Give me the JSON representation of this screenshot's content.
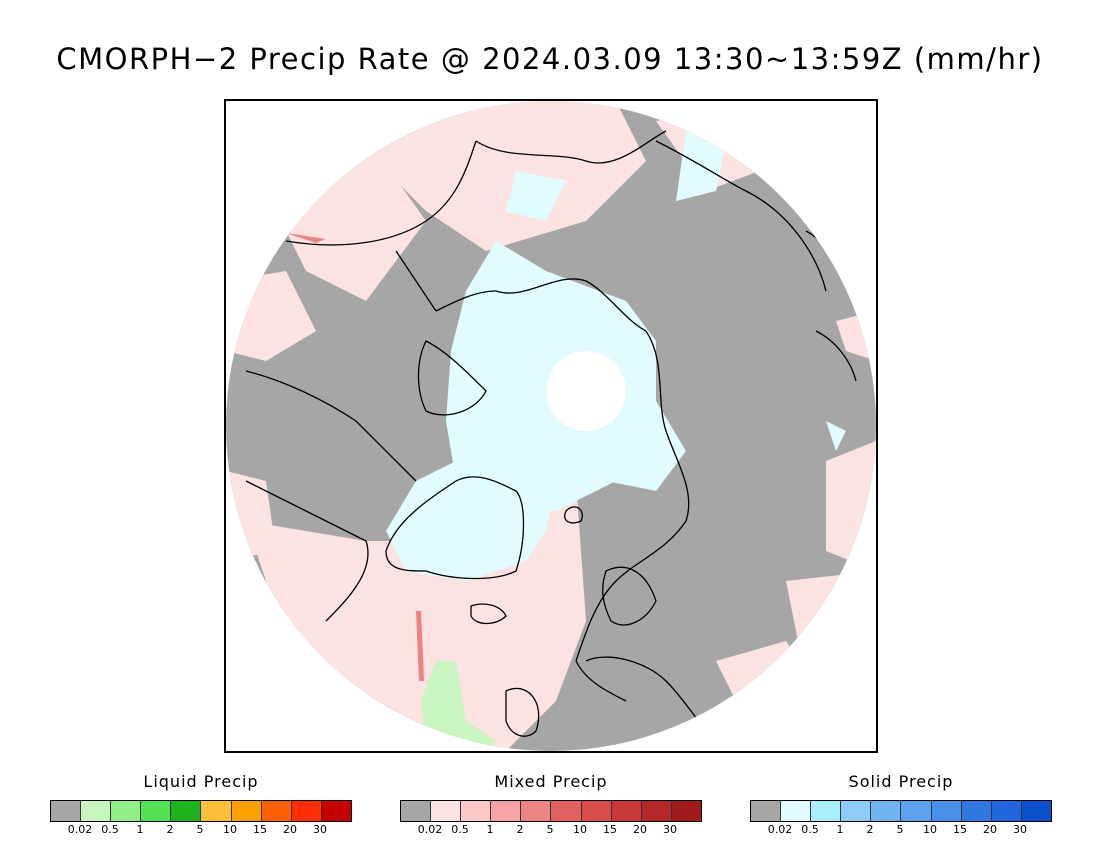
{
  "title": "CMORPH−2 Precip Rate @ 2024.03.09 13:30~13:59Z (mm/hr)",
  "colors": {
    "land_nodata": "#a6a6a6",
    "coastline": "#000000",
    "frame": "#000000"
  },
  "map": {
    "projection": "north-polar-stereographic",
    "features": [
      "coastline",
      "gray-no-precip",
      "mixed-precip-pink",
      "solid-precip-blue",
      "liquid-precip-green"
    ]
  },
  "legends": [
    {
      "title": "Liquid Precip",
      "colors": [
        "#a6a6a6",
        "#c8f5c0",
        "#92ee88",
        "#53e253",
        "#1eb31e",
        "#fbbf3c",
        "#fe9f02",
        "#fe6002",
        "#fe2d02",
        "#c40000"
      ],
      "ticks": [
        "0.02",
        "0.5",
        "1",
        "2",
        "5",
        "10",
        "15",
        "20",
        "30"
      ]
    },
    {
      "title": "Mixed Precip",
      "colors": [
        "#a6a6a6",
        "#fde2e2",
        "#fcc8c8",
        "#f4a4a4",
        "#ec8484",
        "#e06060",
        "#d84c4c",
        "#c83838",
        "#b52828",
        "#a01c1c"
      ],
      "ticks": [
        "0.02",
        "0.5",
        "1",
        "2",
        "5",
        "10",
        "15",
        "20",
        "30"
      ]
    },
    {
      "title": "Solid Precip",
      "colors": [
        "#a6a6a6",
        "#e0fcfe",
        "#a8eefc",
        "#8ecbf6",
        "#70b4f2",
        "#5ca2ee",
        "#4890ea",
        "#3278e2",
        "#2066da",
        "#0c50ce"
      ],
      "ticks": [
        "0.02",
        "0.5",
        "1",
        "2",
        "5",
        "10",
        "15",
        "20",
        "30"
      ]
    }
  ]
}
